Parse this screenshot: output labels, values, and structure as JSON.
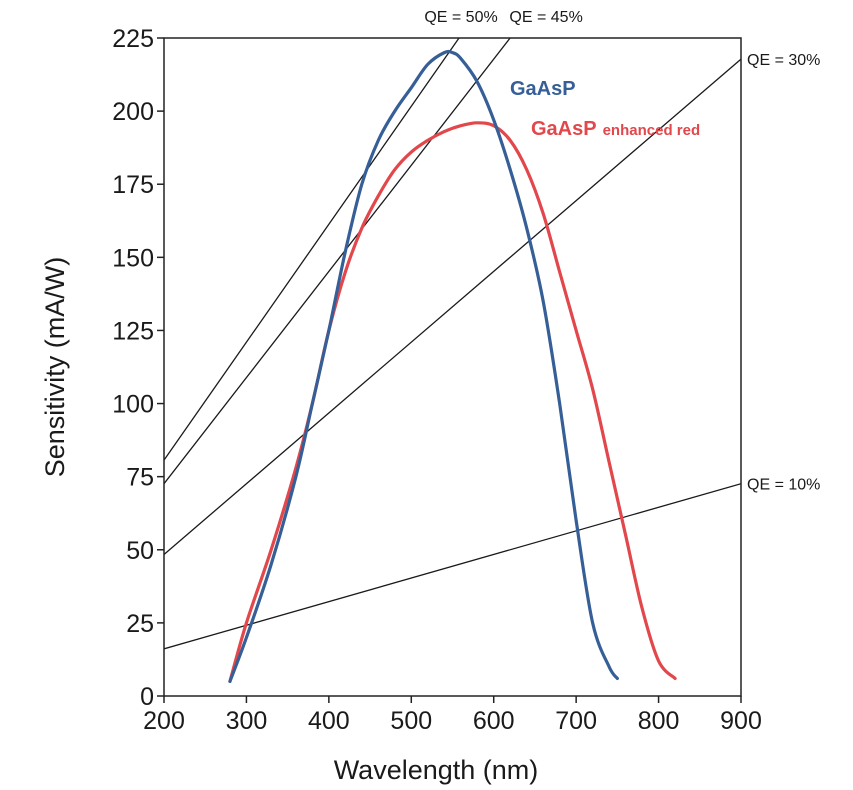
{
  "chart_data": {
    "type": "line",
    "title": "",
    "xlabel": "Wavelength (nm)",
    "ylabel": "Sensitivity (mA/W)",
    "xlim": [
      200,
      900
    ],
    "ylim": [
      0,
      225
    ],
    "xticks": [
      200,
      300,
      400,
      500,
      600,
      700,
      800,
      900
    ],
    "yticks": [
      0,
      25,
      50,
      75,
      100,
      125,
      150,
      175,
      200,
      225
    ],
    "grid": false,
    "series": [
      {
        "name": "GaAsP",
        "color": "#355f96",
        "label_main": "GaAsP",
        "label_suffix": "",
        "x": [
          280,
          300,
          330,
          360,
          380,
          400,
          420,
          440,
          460,
          480,
          500,
          520,
          540,
          550,
          560,
          580,
          600,
          620,
          640,
          660,
          680,
          700,
          720,
          740,
          750
        ],
        "y": [
          5,
          20,
          45,
          75,
          100,
          125,
          152,
          175,
          190,
          200,
          208,
          216,
          220,
          220,
          218,
          210,
          197,
          180,
          160,
          135,
          100,
          60,
          25,
          10,
          6
        ]
      },
      {
        "name": "GaAsP enhanced red",
        "color": "#e2474b",
        "label_main": "GaAsP",
        "label_suffix": "enhanced red",
        "x": [
          280,
          300,
          330,
          360,
          380,
          400,
          420,
          440,
          460,
          480,
          500,
          520,
          540,
          560,
          580,
          600,
          620,
          640,
          660,
          680,
          700,
          720,
          740,
          760,
          780,
          800,
          820
        ],
        "y": [
          5,
          25,
          50,
          78,
          100,
          125,
          145,
          160,
          171,
          180,
          186,
          190,
          193,
          195,
          196,
          195,
          190,
          180,
          165,
          145,
          125,
          105,
          80,
          55,
          30,
          12,
          6
        ]
      }
    ],
    "qe_lines": [
      {
        "label": "QE = 50%",
        "qe": 0.5,
        "label_position": "top"
      },
      {
        "label": "QE = 45%",
        "qe": 0.45,
        "label_position": "top"
      },
      {
        "label": "QE = 30%",
        "qe": 0.3,
        "label_position": "right"
      },
      {
        "label": "QE = 10%",
        "qe": 0.1,
        "label_position": "right"
      }
    ]
  }
}
